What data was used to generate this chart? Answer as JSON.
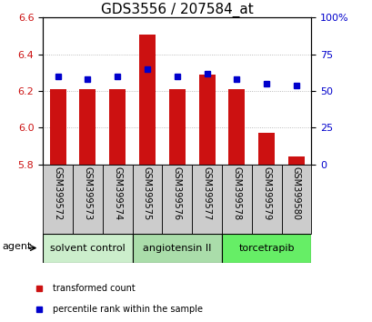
{
  "title": "GDS3556 / 207584_at",
  "bar_values": [
    6.21,
    6.21,
    6.21,
    6.51,
    6.21,
    6.29,
    6.21,
    5.97,
    5.84
  ],
  "percentile_values": [
    60,
    58,
    60,
    65,
    60,
    62,
    58,
    55,
    54
  ],
  "bar_bottom": 5.8,
  "xlabels": [
    "GSM399572",
    "GSM399573",
    "GSM399574",
    "GSM399575",
    "GSM399576",
    "GSM399577",
    "GSM399578",
    "GSM399579",
    "GSM399580"
  ],
  "ylim_left": [
    5.8,
    6.6
  ],
  "ylim_right": [
    0,
    100
  ],
  "yticks_left": [
    5.8,
    6.0,
    6.2,
    6.4,
    6.6
  ],
  "yticks_right": [
    0,
    25,
    50,
    75,
    100
  ],
  "ytick_labels_right": [
    "0",
    "25",
    "50",
    "75",
    "100%"
  ],
  "bar_color": "#cc1111",
  "marker_color": "#0000cc",
  "grid_color": "#aaaaaa",
  "groups": [
    {
      "label": "solvent control",
      "start": 0,
      "end": 3,
      "color": "#cceecc"
    },
    {
      "label": "angiotensin II",
      "start": 3,
      "end": 6,
      "color": "#aaddaa"
    },
    {
      "label": "torcetrapib",
      "start": 6,
      "end": 9,
      "color": "#66ee66"
    }
  ],
  "agent_label": "agent",
  "legend_items": [
    {
      "label": "transformed count",
      "color": "#cc1111"
    },
    {
      "label": "percentile rank within the sample",
      "color": "#0000cc"
    }
  ],
  "title_fontsize": 11,
  "tick_fontsize": 8,
  "label_fontsize": 8,
  "group_fontsize": 8,
  "xtick_fontsize": 7,
  "background_color": "#ffffff",
  "tickbox_color": "#cccccc"
}
